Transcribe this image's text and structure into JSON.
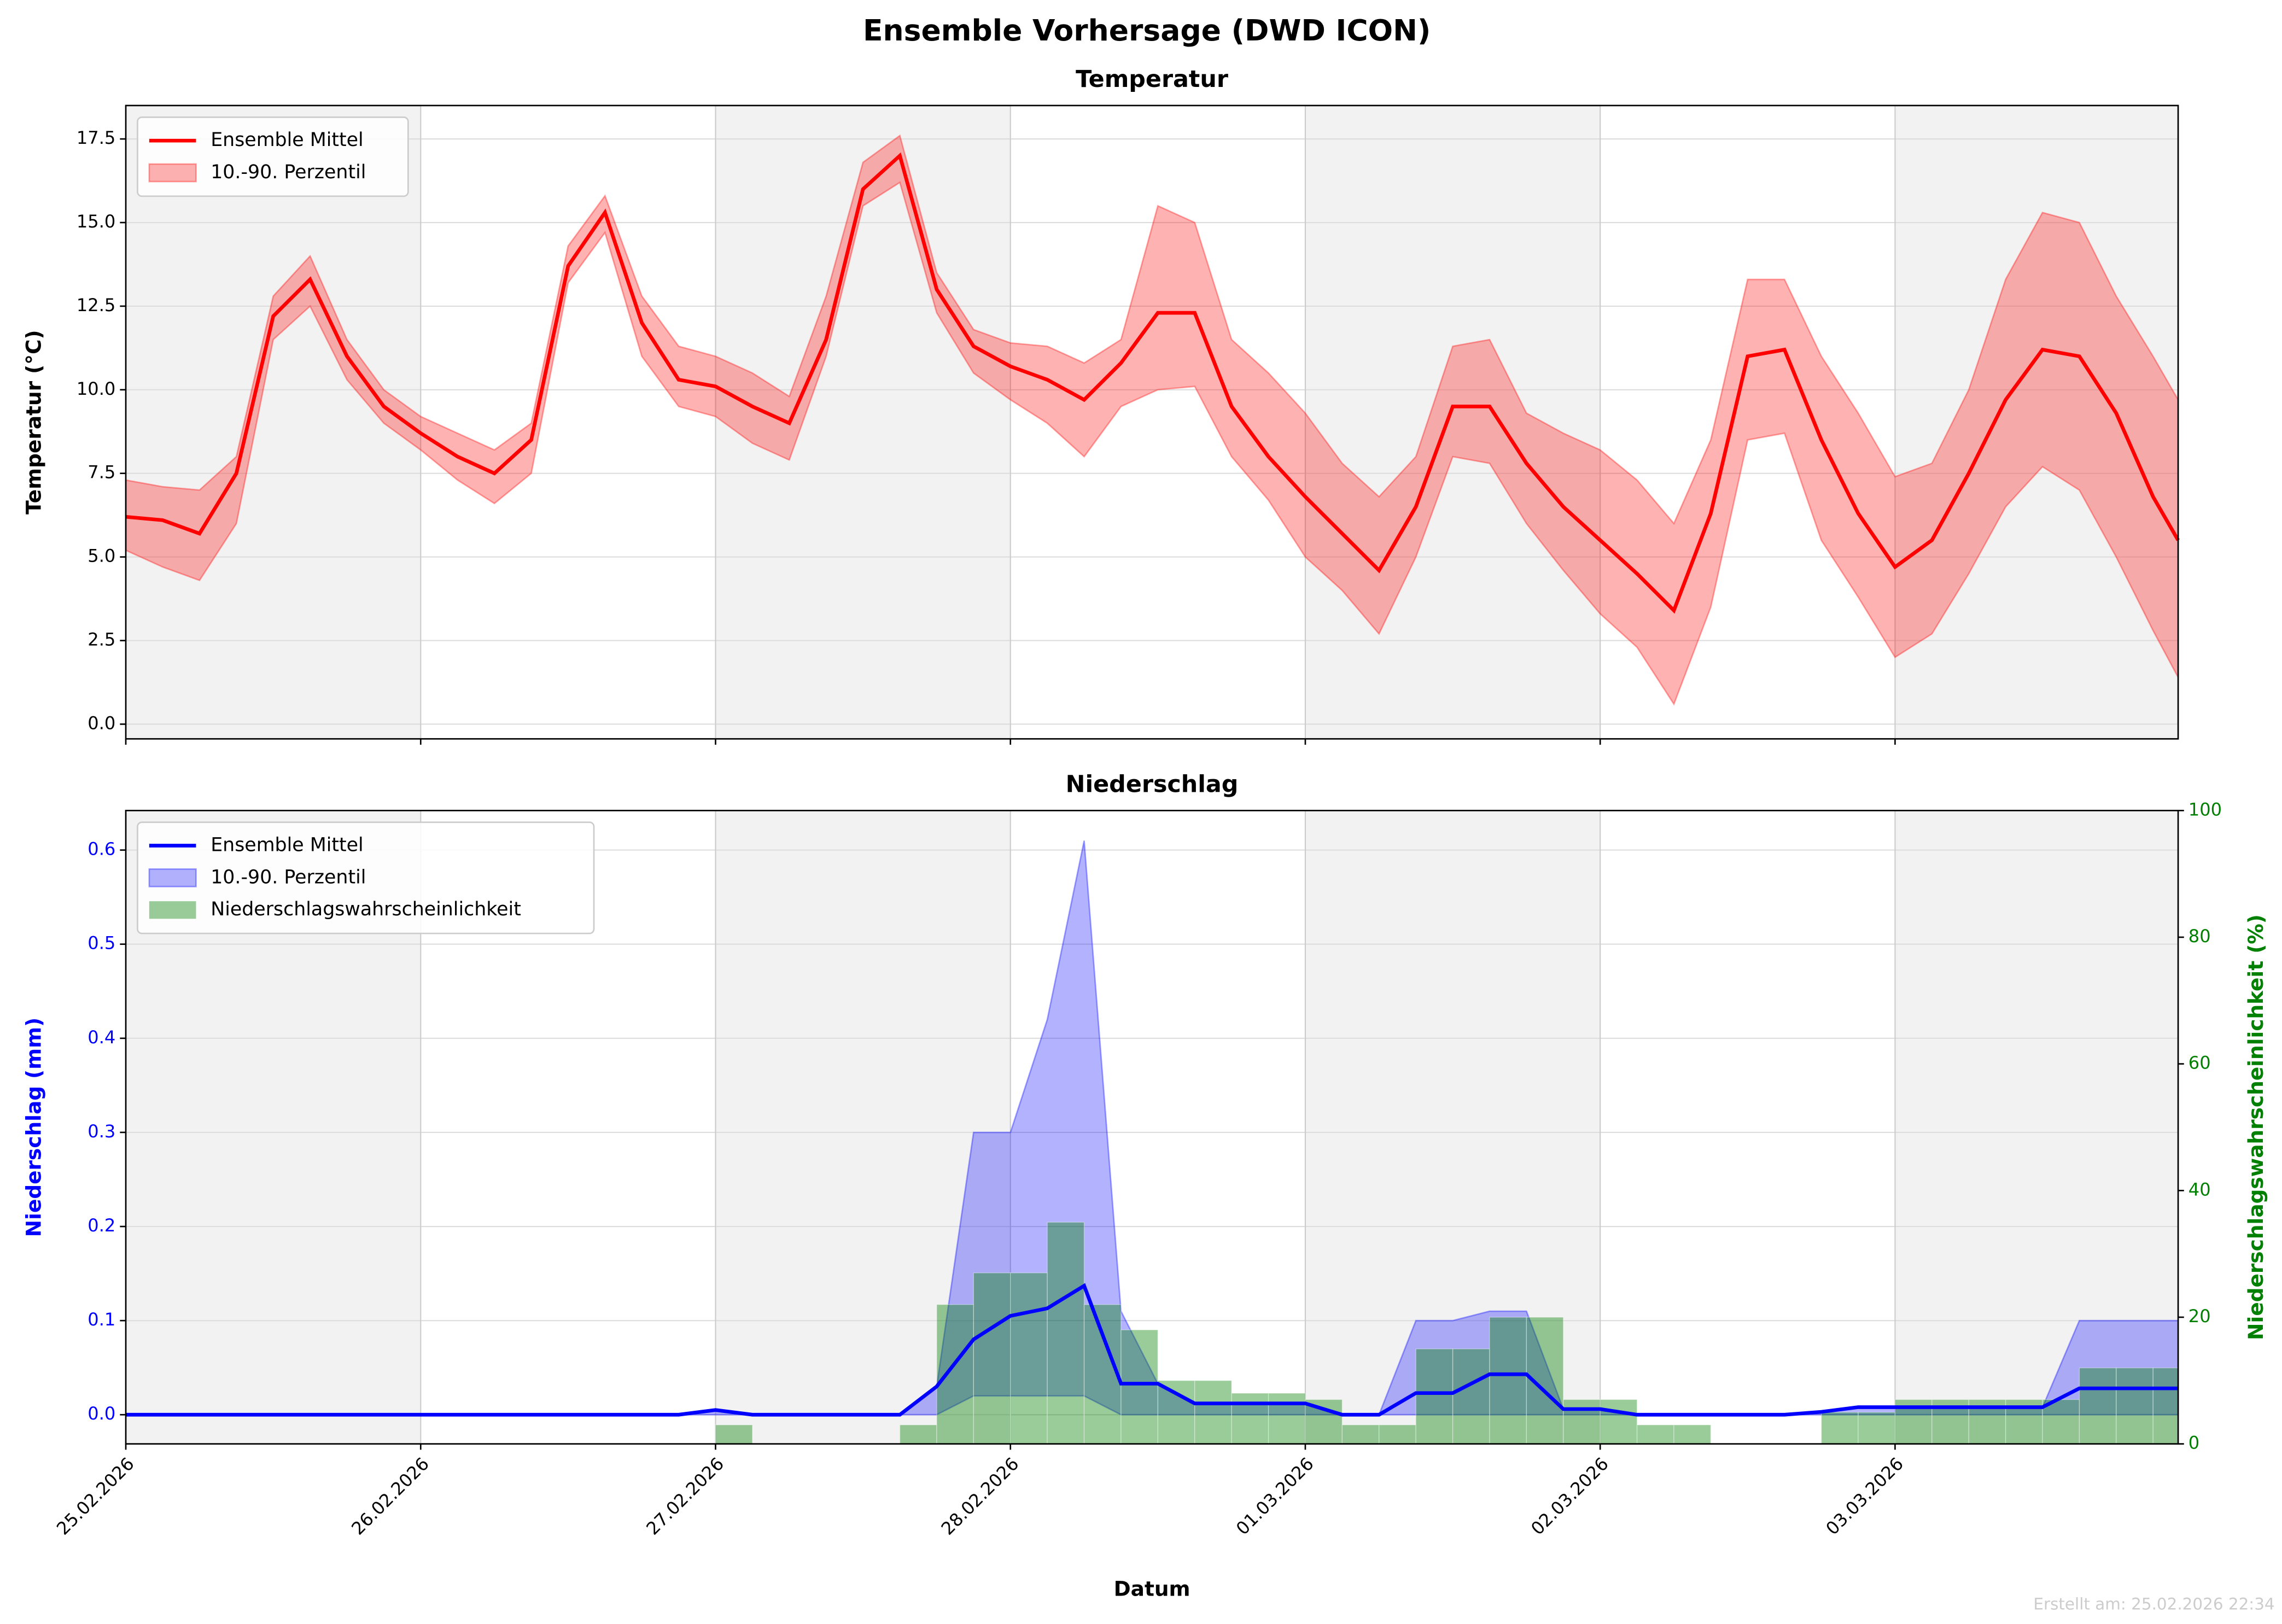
{
  "title": "Ensemble Vorhersage (DWD ICON)",
  "footnote": "Erstellt am: 25.02.2026 22:34",
  "chart_data": [
    {
      "type": "line",
      "title": "Temperatur",
      "ylabel": "Temperatur (°C)",
      "legend": "upper left",
      "grid": true,
      "x": [
        0,
        0.125,
        0.25,
        0.375,
        0.5,
        0.625,
        0.75,
        0.875,
        1,
        1.125,
        1.25,
        1.375,
        1.5,
        1.625,
        1.75,
        1.875,
        2,
        2.125,
        2.25,
        2.375,
        2.5,
        2.625,
        2.75,
        2.875,
        3,
        3.125,
        3.25,
        3.375,
        3.5,
        3.625,
        3.75,
        3.875,
        4,
        4.125,
        4.25,
        4.375,
        4.5,
        4.625,
        4.75,
        4.875,
        5,
        5.125,
        5.25,
        5.375,
        5.5,
        5.625,
        5.75,
        5.875,
        6,
        6.125,
        6.25,
        6.375,
        6.5,
        6.625,
        6.75,
        6.875,
        6.96
      ],
      "xlim": [
        0,
        6.96
      ],
      "xticks": [
        0,
        1,
        2,
        3,
        4,
        5,
        6
      ],
      "ylim": [
        -0.44,
        18.5
      ],
      "yticks": [
        {
          "value": 0,
          "label": "0.0"
        },
        2.5,
        {
          "value": 5,
          "label": "5.0"
        },
        7.5,
        {
          "value": 10,
          "label": "10.0"
        },
        12.5,
        {
          "value": 15,
          "label": "15.0"
        },
        17.5
      ],
      "series": [
        {
          "name": "Ensemble Mittel",
          "color": "#ff0000",
          "values": [
            6.2,
            6.1,
            5.7,
            7.5,
            12.2,
            13.3,
            11,
            9.5,
            8.7,
            8.0,
            7.5,
            8.5,
            13.7,
            15.3,
            12,
            10.3,
            10.1,
            9.5,
            9.0,
            11.5,
            16,
            17,
            13,
            11.3,
            10.7,
            10.3,
            9.7,
            10.8,
            12.3,
            12.3,
            9.5,
            8.0,
            6.8,
            5.7,
            4.6,
            6.5,
            9.5,
            9.5,
            7.8,
            6.5,
            5.5,
            4.5,
            3.4,
            6.3,
            11.0,
            11.2,
            8.5,
            6.3,
            4.7,
            5.5,
            7.5,
            9.7,
            11.2,
            11.0,
            9.3,
            6.8,
            5.5
          ]
        },
        {
          "name": "10.-90. Perzentil",
          "color": "#ff0000",
          "low": [
            5.2,
            4.7,
            4.3,
            6.0,
            11.5,
            12.5,
            10.3,
            9.0,
            8.2,
            7.3,
            6.6,
            7.5,
            13.2,
            14.7,
            11,
            9.5,
            9.2,
            8.4,
            7.9,
            11.0,
            15.5,
            16.2,
            12.3,
            10.5,
            9.7,
            9.0,
            8.0,
            9.5,
            10.0,
            10.1,
            8.0,
            6.7,
            5.0,
            4.0,
            2.7,
            5.0,
            8.0,
            7.8,
            6.0,
            4.6,
            3.3,
            2.3,
            0.6,
            3.5,
            8.5,
            8.7,
            5.5,
            3.8,
            2.0,
            2.7,
            4.5,
            6.5,
            7.7,
            7.0,
            5.0,
            2.8,
            1.4
          ],
          "high": [
            7.3,
            7.1,
            7.0,
            8.0,
            12.8,
            14.0,
            11.5,
            10.0,
            9.2,
            8.7,
            8.2,
            9.0,
            14.3,
            15.8,
            12.8,
            11.3,
            11.0,
            10.5,
            9.8,
            12.8,
            16.8,
            17.6,
            13.5,
            11.8,
            11.4,
            11.3,
            10.8,
            11.5,
            15.5,
            15.0,
            11.5,
            10.5,
            9.3,
            7.8,
            6.8,
            8.0,
            11.3,
            11.5,
            9.3,
            8.7,
            8.2,
            7.3,
            6.0,
            8.5,
            13.3,
            13.3,
            11.0,
            9.3,
            7.4,
            7.8,
            10.0,
            13.3,
            15.3,
            15.0,
            12.8,
            11.0,
            9.7
          ]
        }
      ]
    },
    {
      "type": "line",
      "title": "Niederschlag",
      "xlabel": "Datum",
      "ylabel": "Niederschlag (mm)",
      "y2label": "Niederschlagswahrscheinlichkeit (%)",
      "legend": "upper left",
      "grid": true,
      "x": [
        0,
        0.125,
        0.25,
        0.375,
        0.5,
        0.625,
        0.75,
        0.875,
        1,
        1.125,
        1.25,
        1.375,
        1.5,
        1.625,
        1.75,
        1.875,
        2,
        2.125,
        2.25,
        2.375,
        2.5,
        2.625,
        2.75,
        2.875,
        3,
        3.125,
        3.25,
        3.375,
        3.5,
        3.625,
        3.75,
        3.875,
        4,
        4.125,
        4.25,
        4.375,
        4.5,
        4.625,
        4.75,
        4.875,
        5,
        5.125,
        5.25,
        5.375,
        5.5,
        5.625,
        5.75,
        5.875,
        6,
        6.125,
        6.25,
        6.375,
        6.5,
        6.625,
        6.75,
        6.875,
        6.96
      ],
      "xlim": [
        0,
        6.96
      ],
      "xticks": [
        {
          "value": 0,
          "label": "25.02.2026"
        },
        {
          "value": 1,
          "label": "26.02.2026"
        },
        {
          "value": 2,
          "label": "27.02.2026"
        },
        {
          "value": 3,
          "label": "28.02.2026"
        },
        {
          "value": 4,
          "label": "01.03.2026"
        },
        {
          "value": 5,
          "label": "02.03.2026"
        },
        {
          "value": 6,
          "label": "03.03.2026"
        }
      ],
      "ylim": [
        -0.031,
        0.642
      ],
      "yticks": [
        {
          "value": 0,
          "label": "0.0"
        },
        0.1,
        0.2,
        0.3,
        0.4,
        0.5,
        0.6
      ],
      "y2lim": [
        0,
        100
      ],
      "y2ticks": [
        0,
        20,
        40,
        60,
        80,
        100
      ],
      "series": [
        {
          "name": "Ensemble Mittel",
          "color": "#0000ff",
          "values": [
            0,
            0,
            0,
            0,
            0,
            0,
            0,
            0,
            0,
            0,
            0,
            0,
            0,
            0,
            0,
            0,
            0.005,
            0,
            0,
            0,
            0,
            0,
            0.03,
            0.08,
            0.105,
            0.113,
            0.137,
            0.033,
            0.033,
            0.012,
            0.012,
            0.012,
            0.012,
            0,
            0,
            0.023,
            0.023,
            0.043,
            0.043,
            0.006,
            0.006,
            0,
            0,
            0,
            0,
            0,
            0.003,
            0.008,
            0.008,
            0.008,
            0.008,
            0.008,
            0.008,
            0.028,
            0.028,
            0.028,
            0.028
          ]
        },
        {
          "name": "10.-90. Perzentil",
          "color": "#0000ff",
          "low": [
            0,
            0,
            0,
            0,
            0,
            0,
            0,
            0,
            0,
            0,
            0,
            0,
            0,
            0,
            0,
            0,
            0,
            0,
            0,
            0,
            0,
            0,
            0,
            0.02,
            0.02,
            0.02,
            0.02,
            0,
            0,
            0,
            0,
            0,
            0,
            0,
            0,
            0,
            0,
            0,
            0,
            0,
            0,
            0,
            0,
            0,
            0,
            0,
            0,
            0,
            0,
            0,
            0,
            0,
            0,
            0,
            0,
            0,
            0
          ],
          "high": [
            0,
            0,
            0,
            0,
            0,
            0,
            0,
            0,
            0,
            0,
            0,
            0,
            0,
            0,
            0,
            0,
            0.005,
            0,
            0,
            0,
            0,
            0,
            0.03,
            0.3,
            0.3,
            0.42,
            0.61,
            0.11,
            0.033,
            0.012,
            0.012,
            0.012,
            0.012,
            0,
            0,
            0.1,
            0.1,
            0.11,
            0.11,
            0.006,
            0.006,
            0,
            0,
            0,
            0,
            0,
            0.003,
            0.008,
            0.008,
            0.008,
            0.008,
            0.008,
            0.008,
            0.1,
            0.1,
            0.1,
            0.1
          ]
        },
        {
          "name": "Niederschlagswahrscheinlichkeit",
          "color": "#008000",
          "axis": "y2",
          "values": [
            0,
            0,
            0,
            0,
            0,
            0,
            0,
            0,
            0,
            0,
            0,
            0,
            0,
            0,
            0,
            0,
            3,
            0,
            0,
            0,
            0,
            3,
            22,
            27,
            27,
            35,
            22,
            18,
            10,
            10,
            8,
            8,
            7,
            3,
            3,
            15,
            15,
            20,
            20,
            7,
            7,
            3,
            3,
            0,
            0,
            0,
            5,
            5,
            7,
            7,
            7,
            7,
            7,
            12,
            12,
            12,
            12
          ]
        }
      ]
    }
  ]
}
